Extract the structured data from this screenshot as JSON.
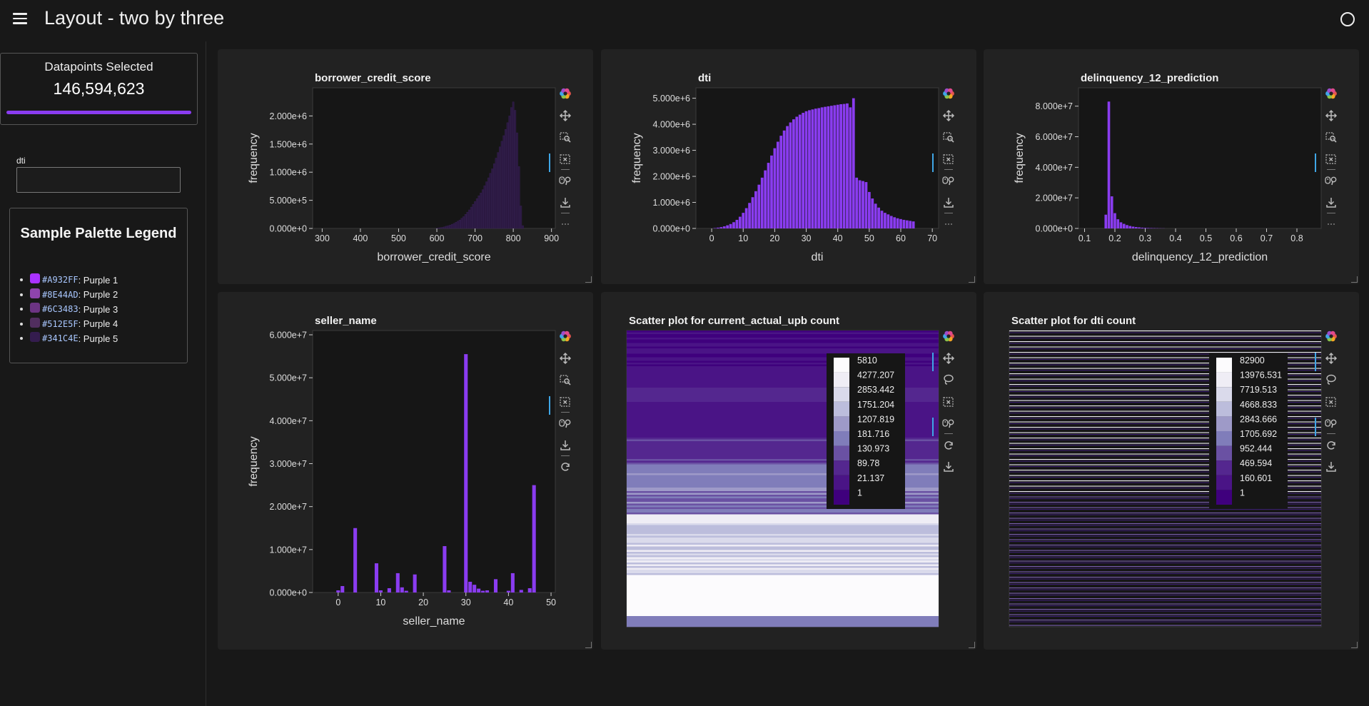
{
  "app": {
    "title": "Layout - two by three"
  },
  "sidebar": {
    "datapoints": {
      "label": "Datapoints Selected",
      "value": "146,594,623",
      "fraction": 1.0
    },
    "dti_filter": {
      "label": "dti",
      "value": "",
      "placeholder": ""
    },
    "legend": {
      "title": "Sample Palette Legend",
      "items": [
        {
          "hex": "#A932FF",
          "name": ": Purple 1",
          "color": "#A932FF"
        },
        {
          "hex": "#8E44AD",
          "name": ": Purple 2",
          "color": "#8E44AD"
        },
        {
          "hex": "#6C3483",
          "name": ": Purple 3",
          "color": "#6C3483"
        },
        {
          "hex": "#512E5F",
          "name": ": Purple 4",
          "color": "#512E5F"
        },
        {
          "hex": "#341C4E",
          "name": ": Purple 5",
          "color": "#341C4E"
        }
      ]
    }
  },
  "colors": {
    "bar": "#8a3cf0",
    "bar_dim": "#2a1840",
    "plot_bg": "#161616",
    "card_bg": "#222222",
    "accent": "#3fa6e6"
  },
  "chart_data": [
    {
      "id": "borrower-credit-score",
      "type": "bar",
      "title": "borrower_credit_score",
      "xlabel": "borrower_credit_score",
      "ylabel": "frequency",
      "xlim": [
        275,
        910
      ],
      "ylim": [
        0,
        2500000
      ],
      "xticks": [
        300,
        400,
        500,
        600,
        700,
        800,
        900
      ],
      "yticks": [
        0,
        500000,
        1000000,
        1500000,
        2000000
      ],
      "ytick_labels": [
        "0.000e+0",
        "5.000e+5",
        "1.000e+6",
        "1.500e+6",
        "2.000e+6"
      ],
      "bar_color": "#2a1840",
      "x": [
        600,
        605,
        610,
        615,
        620,
        625,
        630,
        635,
        640,
        645,
        650,
        655,
        660,
        665,
        670,
        675,
        680,
        685,
        690,
        695,
        700,
        705,
        710,
        715,
        720,
        725,
        730,
        735,
        740,
        745,
        750,
        755,
        760,
        765,
        770,
        775,
        780,
        785,
        790,
        795,
        800,
        805,
        810,
        815,
        820,
        825
      ],
      "values": [
        5000,
        10000,
        15000,
        20000,
        30000,
        40000,
        50000,
        60000,
        75000,
        90000,
        110000,
        130000,
        150000,
        180000,
        210000,
        250000,
        290000,
        330000,
        380000,
        430000,
        480000,
        530000,
        580000,
        630000,
        690000,
        760000,
        830000,
        900000,
        980000,
        1060000,
        1150000,
        1250000,
        1350000,
        1450000,
        1550000,
        1650000,
        1760000,
        1880000,
        2000000,
        2150000,
        2250000,
        2100000,
        1700000,
        1100000,
        400000,
        50000
      ]
    },
    {
      "id": "dti",
      "type": "bar",
      "title": "dti",
      "xlabel": "dti",
      "ylabel": "frequency",
      "xlim": [
        -5,
        72
      ],
      "ylim": [
        0,
        5400000
      ],
      "xticks": [
        0,
        10,
        20,
        30,
        40,
        50,
        60,
        70
      ],
      "yticks": [
        0,
        1000000,
        2000000,
        3000000,
        4000000,
        5000000
      ],
      "ytick_labels": [
        "0.000e+0",
        "1.000e+6",
        "2.000e+6",
        "3.000e+6",
        "4.000e+6",
        "5.000e+6"
      ],
      "bar_color": "#8a3cf0",
      "x": [
        1,
        2,
        3,
        4,
        5,
        6,
        7,
        8,
        9,
        10,
        11,
        12,
        13,
        14,
        15,
        16,
        17,
        18,
        19,
        20,
        21,
        22,
        23,
        24,
        25,
        26,
        27,
        28,
        29,
        30,
        31,
        32,
        33,
        34,
        35,
        36,
        37,
        38,
        39,
        40,
        41,
        42,
        43,
        44,
        45,
        46,
        47,
        48,
        49,
        50,
        51,
        52,
        53,
        54,
        55,
        56,
        57,
        58,
        59,
        60,
        61,
        62,
        63,
        64
      ],
      "values": [
        15000,
        30000,
        50000,
        80000,
        120000,
        170000,
        240000,
        330000,
        450000,
        600000,
        780000,
        980000,
        1200000,
        1430000,
        1680000,
        1950000,
        2230000,
        2520000,
        2800000,
        3080000,
        3330000,
        3560000,
        3760000,
        3930000,
        4070000,
        4190000,
        4290000,
        4370000,
        4440000,
        4500000,
        4540000,
        4570000,
        4600000,
        4620000,
        4650000,
        4670000,
        4690000,
        4710000,
        4730000,
        4750000,
        4770000,
        4780000,
        4800000,
        4650000,
        5000000,
        1950000,
        1850000,
        1820000,
        1780000,
        1400000,
        1150000,
        950000,
        800000,
        680000,
        600000,
        540000,
        480000,
        430000,
        390000,
        360000,
        330000,
        310000,
        290000,
        270000
      ]
    },
    {
      "id": "delinquency-12-prediction",
      "type": "bar",
      "title": "delinquency_12_prediction",
      "xlabel": "delinquency_12_prediction",
      "ylabel": "frequency",
      "xlim": [
        0.08,
        0.88
      ],
      "ylim": [
        0,
        92000000
      ],
      "xticks": [
        0.1,
        0.2,
        0.3,
        0.4,
        0.5,
        0.6,
        0.7,
        0.8
      ],
      "yticks": [
        0,
        20000000,
        40000000,
        60000000,
        80000000
      ],
      "ytick_labels": [
        "0.000e+0",
        "2.000e+7",
        "4.000e+7",
        "6.000e+7",
        "8.000e+7"
      ],
      "bar_color": "#8a3cf0",
      "x": [
        0.17,
        0.18,
        0.19,
        0.2,
        0.21,
        0.22,
        0.23,
        0.24,
        0.25,
        0.26,
        0.27,
        0.28,
        0.29,
        0.3,
        0.31,
        0.32,
        0.33,
        0.34,
        0.35,
        0.36
      ],
      "values": [
        9000000,
        83000000,
        21000000,
        10000000,
        6000000,
        4000000,
        3000000,
        2200000,
        1600000,
        1200000,
        900000,
        700000,
        500000,
        400000,
        300000,
        250000,
        200000,
        150000,
        100000,
        80000
      ]
    },
    {
      "id": "seller-name",
      "type": "bar",
      "title": "seller_name",
      "xlabel": "seller_name",
      "ylabel": "frequency",
      "xlim": [
        -6,
        51
      ],
      "ylim": [
        0,
        61000000
      ],
      "xticks": [
        0,
        10,
        20,
        30,
        40,
        50
      ],
      "yticks": [
        0,
        10000000,
        20000000,
        30000000,
        40000000,
        50000000,
        60000000
      ],
      "ytick_labels": [
        "0.000e+0",
        "1.000e+7",
        "2.000e+7",
        "3.000e+7",
        "4.000e+7",
        "5.000e+7",
        "6.000e+7"
      ],
      "bar_color": "#8a3cf0",
      "x": [
        0,
        1,
        4,
        9,
        10,
        12,
        14,
        15,
        16,
        18,
        25,
        26,
        30,
        31,
        32,
        33,
        34,
        35,
        37,
        40,
        41,
        43,
        45,
        46
      ],
      "values": [
        500000,
        1500000,
        15000000,
        6800000,
        500000,
        1000000,
        4500000,
        1200000,
        400000,
        4200000,
        10800000,
        500000,
        55500000,
        2500000,
        1800000,
        900000,
        400000,
        500000,
        3100000,
        400000,
        4500000,
        600000,
        1000000,
        25000000
      ]
    },
    {
      "id": "current-actual-upb",
      "type": "heatmap",
      "title": "Scatter plot for current_actual_upb count",
      "colorbar_labels": [
        "5810",
        "4277.207",
        "2853.442",
        "1751.204",
        "1207.819",
        "181.716",
        "130.973",
        "89.78",
        "21.137",
        "1"
      ],
      "colorbar_colors": [
        "#fcfbfd",
        "#efedf5",
        "#dadaeb",
        "#bcbddc",
        "#9e9ac8",
        "#807dba",
        "#6a51a3",
        "#54278f",
        "#4a1486",
        "#3f007d"
      ]
    },
    {
      "id": "dti-count",
      "type": "heatmap",
      "title": "Scatter plot for dti count",
      "colorbar_labels": [
        "82900",
        "13976.531",
        "7719.513",
        "4668.833",
        "2843.666",
        "1705.692",
        "952.444",
        "469.594",
        "160.601",
        "1"
      ],
      "colorbar_colors": [
        "#fcfbfd",
        "#efedf5",
        "#dadaeb",
        "#bcbddc",
        "#9e9ac8",
        "#807dba",
        "#6a51a3",
        "#54278f",
        "#4a1486",
        "#3f007d"
      ]
    }
  ]
}
